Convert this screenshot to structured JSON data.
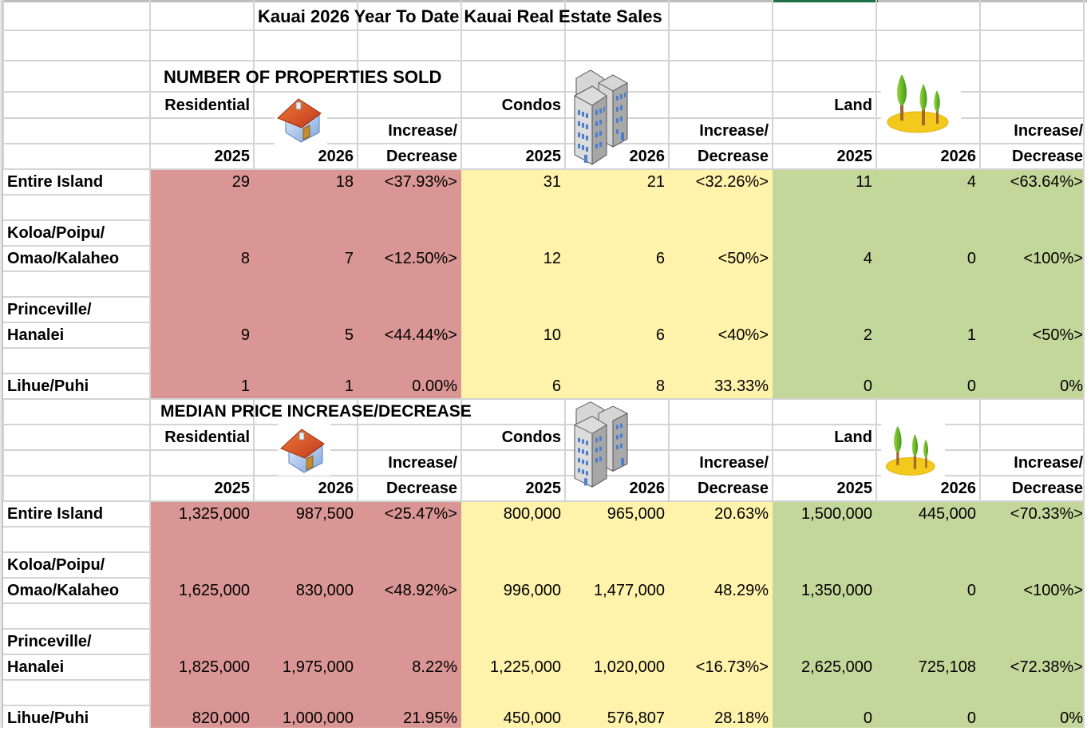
{
  "sheet": {
    "title": "Kauai 2026 Year To Date Kauai Real Estate Sales",
    "colors": {
      "residential": "#da9694",
      "condos": "#fff2ab",
      "land": "#c4d79b",
      "gridline": "#d4d4d4",
      "selection": "#1e7145"
    },
    "icons": {
      "residential": "house-icon",
      "condos": "buildings-icon",
      "land": "trees-icon"
    }
  },
  "sold": {
    "heading": "NUMBER OF PROPERTIES SOLD",
    "categories": {
      "residential": "Residential",
      "condos": "Condos",
      "land": "Land"
    },
    "year_a": "2025",
    "year_b": "2026",
    "change_1": "Increase/",
    "change_2": "Decrease",
    "rows": [
      {
        "area_1": "Entire Island",
        "area_2": "",
        "res": [
          "29",
          "18",
          "<37.93%>"
        ],
        "con": [
          "31",
          "21",
          "<32.26%>"
        ],
        "land": [
          "11",
          "4",
          "<63.64%>"
        ]
      },
      {
        "area_1": "Koloa/Poipu/",
        "area_2": "Omao/Kalaheo",
        "res": [
          "8",
          "7",
          "<12.50%>"
        ],
        "con": [
          "12",
          "6",
          "<50%>"
        ],
        "land": [
          "4",
          "0",
          "<100%>"
        ]
      },
      {
        "area_1": "Princeville/",
        "area_2": "Hanalei",
        "res": [
          "9",
          "5",
          "<44.44%>"
        ],
        "con": [
          "10",
          "6",
          "<40%>"
        ],
        "land": [
          "2",
          "1",
          "<50%>"
        ]
      },
      {
        "area_1": "Lihue/Puhi",
        "area_2": "",
        "res": [
          "1",
          "1",
          "0.00%"
        ],
        "con": [
          "6",
          "8",
          "33.33%"
        ],
        "land": [
          "0",
          "0",
          "0%"
        ]
      }
    ]
  },
  "median": {
    "heading": "MEDIAN PRICE INCREASE/DECREASE",
    "categories": {
      "residential": "Residential",
      "condos": "Condos",
      "land": "Land"
    },
    "year_a": "2025",
    "year_b": "2026",
    "change_1": "Increase/",
    "change_2": "Decrease",
    "rows": [
      {
        "area_1": "Entire Island",
        "area_2": "",
        "res": [
          "1,325,000",
          "987,500",
          "<25.47%>"
        ],
        "con": [
          "800,000",
          "965,000",
          "20.63%"
        ],
        "land": [
          "1,500,000",
          "445,000",
          "<70.33%>"
        ]
      },
      {
        "area_1": "Koloa/Poipu/",
        "area_2": "Omao/Kalaheo",
        "res": [
          "1,625,000",
          "830,000",
          "<48.92%>"
        ],
        "con": [
          "996,000",
          "1,477,000",
          "48.29%"
        ],
        "land": [
          "1,350,000",
          "0",
          "<100%>"
        ]
      },
      {
        "area_1": "Princeville/",
        "area_2": "Hanalei",
        "res": [
          "1,825,000",
          "1,975,000",
          "8.22%"
        ],
        "con": [
          "1,225,000",
          "1,020,000",
          "<16.73%>"
        ],
        "land": [
          "2,625,000",
          "725,108",
          "<72.38%>"
        ]
      },
      {
        "area_1": "Lihue/Puhi",
        "area_2": "",
        "res": [
          "820,000",
          "1,000,000",
          "21.95%"
        ],
        "con": [
          "450,000",
          "576,807",
          "28.18%"
        ],
        "land": [
          "0",
          "0",
          "0%"
        ]
      }
    ]
  }
}
